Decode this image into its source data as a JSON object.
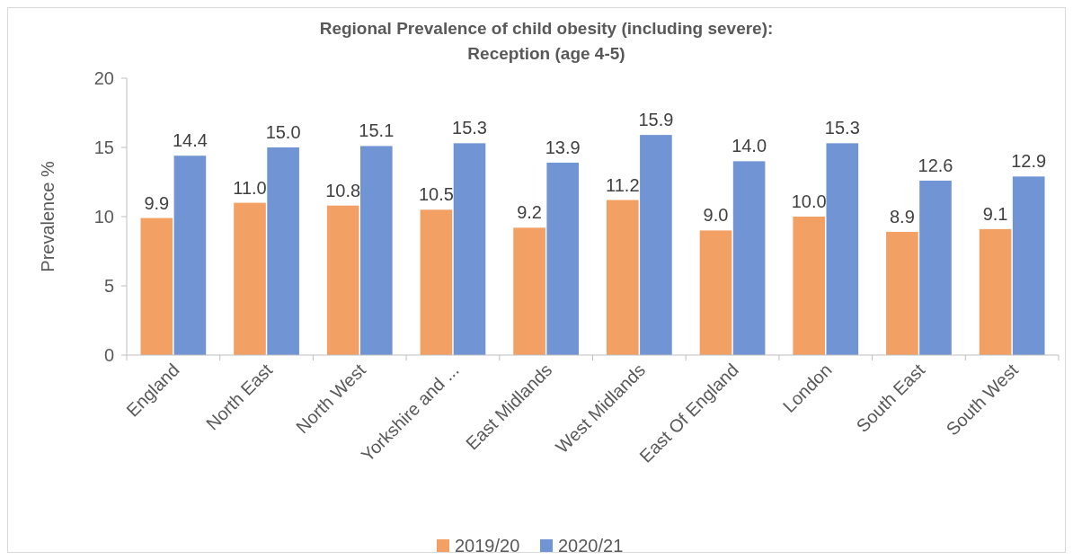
{
  "chart_data": {
    "type": "bar",
    "title": "Regional Prevalence of child obesity (including severe):\nReception (age 4-5)",
    "ylabel": "Prevalence %",
    "categories": [
      "England",
      "North East",
      "North West",
      "Yorkshire and ...",
      "East Midlands",
      "West Midlands",
      "East Of England",
      "London",
      "South East",
      "South West"
    ],
    "series": [
      {
        "name": "2019/20",
        "color": "#f2a064",
        "values": [
          9.9,
          11.0,
          10.8,
          10.5,
          9.2,
          11.2,
          9.0,
          10.0,
          8.9,
          9.1
        ],
        "value_labels": [
          "9.9",
          "11.0",
          "10.8",
          "10.5",
          "9.2",
          "11.2",
          "9.0",
          "10.0",
          "8.9",
          "9.1"
        ]
      },
      {
        "name": "2020/21",
        "color": "#7094d4",
        "values": [
          14.4,
          15.0,
          15.1,
          15.3,
          13.9,
          15.9,
          14.0,
          15.3,
          12.6,
          12.9
        ],
        "value_labels": [
          "14.4",
          "15.0",
          "15.1",
          "15.3",
          "13.9",
          "15.9",
          "14.0",
          "15.3",
          "12.6",
          "12.9"
        ]
      }
    ],
    "ylim": [
      0,
      20
    ],
    "yticks": [
      0,
      5,
      10,
      15,
      20
    ],
    "grid": false,
    "legend": "bottom"
  }
}
